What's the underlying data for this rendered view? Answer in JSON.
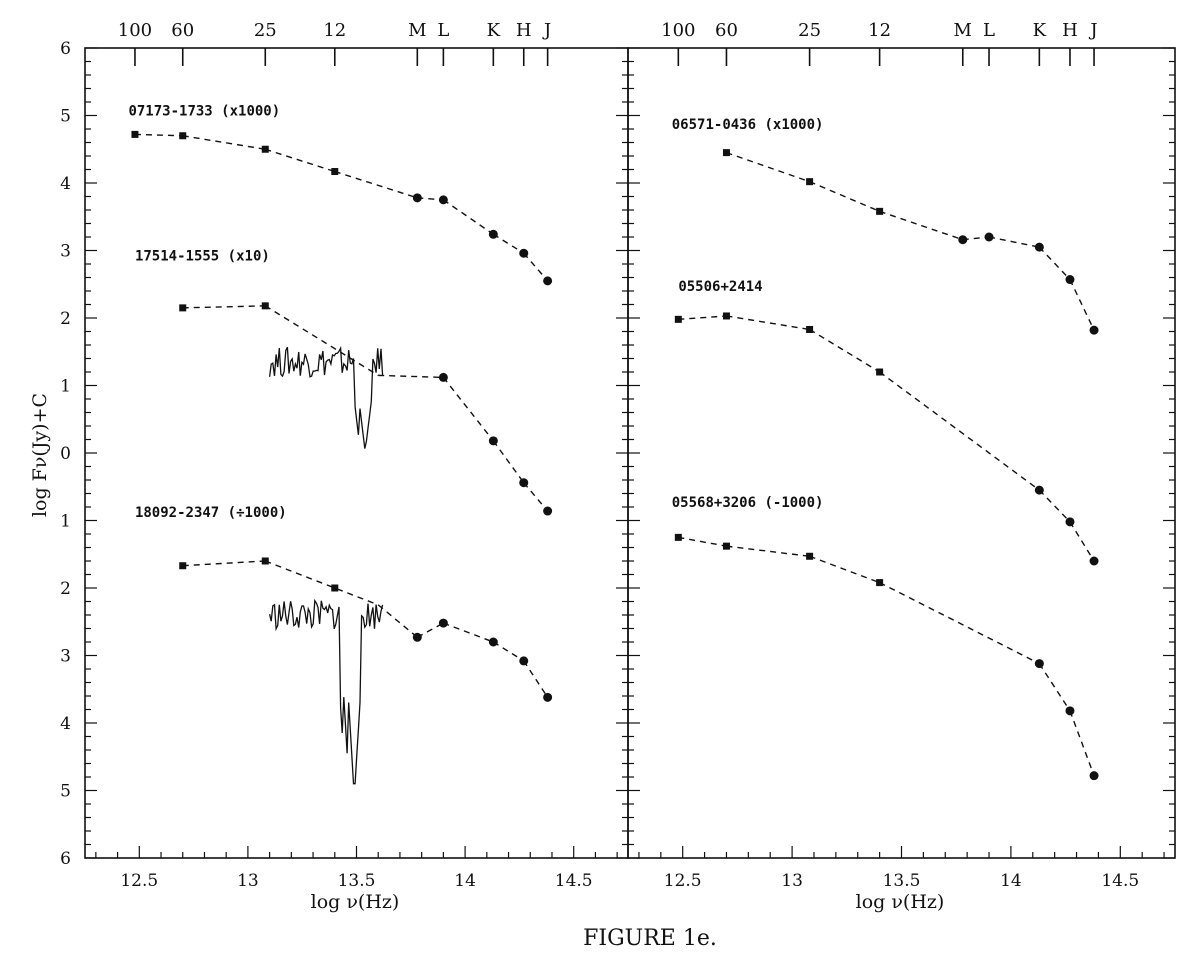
{
  "figure_caption": "FIGURE 1e.",
  "chart_data": [
    {
      "type": "line",
      "panel": "left",
      "ylabel": "log  Fν(Jy)+C",
      "xlabel": "log  ν(Hz)",
      "xlim": [
        12.25,
        14.75
      ],
      "ylim": [
        -6,
        6
      ],
      "x_tick_labels": [
        "12.5",
        "13",
        "13.5",
        "14",
        "14.5"
      ],
      "x_ticks": [
        12.5,
        13,
        13.5,
        14,
        14.5
      ],
      "y_tick_labels": [
        "6",
        "5",
        "4",
        "3",
        "2",
        "1",
        "0",
        "1",
        "2",
        "3",
        "4",
        "5",
        "6"
      ],
      "y_ticks": [
        6,
        5,
        4,
        3,
        2,
        1,
        0,
        -1,
        -2,
        -3,
        -4,
        -5,
        -6
      ],
      "top_band_labels": [
        "100",
        "60",
        "25",
        "12",
        "M",
        "L",
        "K",
        "H",
        "J"
      ],
      "top_band_x": [
        12.48,
        12.7,
        13.08,
        13.4,
        13.78,
        13.9,
        14.13,
        14.27,
        14.38
      ],
      "series": [
        {
          "name": "07173-1733 (x1000)",
          "label_pos": [
            12.45,
            5.0
          ],
          "x": [
            12.48,
            12.7,
            13.08,
            13.4,
            13.78,
            13.9,
            14.13,
            14.27,
            14.38
          ],
          "y": [
            4.72,
            4.7,
            4.5,
            4.17,
            3.78,
            3.75,
            3.24,
            2.96,
            2.55
          ],
          "markers": [
            "square",
            "square",
            "square",
            "square",
            "circle",
            "circle",
            "circle",
            "circle",
            "circle"
          ]
        },
        {
          "name": "17514-1555 (x10)",
          "label_pos": [
            12.48,
            2.85
          ],
          "x": [
            12.7,
            13.08,
            13.6,
            13.9,
            14.13,
            14.27,
            14.38
          ],
          "y": [
            2.15,
            2.18,
            1.15,
            1.12,
            0.18,
            -0.44,
            -0.86
          ],
          "markers": [
            "square",
            "square",
            "none",
            "circle",
            "circle",
            "circle",
            "circle"
          ],
          "spectrum": {
            "x_start": 13.1,
            "x_end": 13.62,
            "y_base": 1.35,
            "trough_x": [
              13.52,
              13.54
            ],
            "trough_y": [
              -0.05,
              0.02
            ]
          }
        },
        {
          "name": "18092-2347 (÷1000)",
          "label_pos": [
            12.48,
            -0.95
          ],
          "x": [
            12.7,
            13.08,
            13.6,
            13.78,
            13.9,
            14.13,
            14.27,
            14.38
          ],
          "y": [
            -1.67,
            -1.6,
            -2.25,
            -2.73,
            -2.52,
            -2.8,
            -3.08,
            -3.62
          ],
          "markers": [
            "square",
            "square",
            "none",
            "circle",
            "circle",
            "circle",
            "circle",
            "circle"
          ],
          "extra_points": [
            {
              "x": 13.4,
              "y": -2.0
            }
          ],
          "spectrum": {
            "x_start": 13.1,
            "x_end": 13.62,
            "y_base": -2.4,
            "trough_x": [
              13.45,
              13.47,
              13.49
            ],
            "trough_y": [
              -4.95,
              -5.2,
              -5.1
            ]
          }
        }
      ]
    },
    {
      "type": "line",
      "panel": "right",
      "xlabel": "log  ν(Hz)",
      "xlim": [
        12.25,
        14.75
      ],
      "ylim": [
        -6,
        6
      ],
      "x_tick_labels": [
        "12.5",
        "13",
        "13.5",
        "14",
        "14.5"
      ],
      "x_ticks": [
        12.5,
        13,
        13.5,
        14,
        14.5
      ],
      "top_band_labels": [
        "100",
        "60",
        "25",
        "12",
        "M",
        "L",
        "K",
        "H",
        "J"
      ],
      "top_band_x": [
        12.48,
        12.7,
        13.08,
        13.4,
        13.78,
        13.9,
        14.13,
        14.27,
        14.38
      ],
      "series": [
        {
          "name": "06571-0436 (x1000)",
          "label_pos": [
            12.45,
            4.8
          ],
          "x": [
            12.7,
            13.08,
            13.4,
            13.78,
            13.9,
            14.13,
            14.27,
            14.38
          ],
          "y": [
            4.45,
            4.02,
            3.58,
            3.16,
            3.2,
            3.05,
            2.57,
            1.82
          ],
          "markers": [
            "square",
            "square",
            "square",
            "circle",
            "circle",
            "circle",
            "circle",
            "circle"
          ]
        },
        {
          "name": "05506+2414",
          "label_pos": [
            12.48,
            2.4
          ],
          "x": [
            12.48,
            12.7,
            13.08,
            13.4,
            14.13,
            14.27,
            14.38
          ],
          "y": [
            1.98,
            2.03,
            1.83,
            1.2,
            -0.55,
            -1.02,
            -1.6
          ],
          "markers": [
            "square",
            "square",
            "square",
            "square",
            "circle",
            "circle",
            "circle"
          ]
        },
        {
          "name": "05568+3206 (-1000)",
          "label_pos": [
            12.45,
            -0.8
          ],
          "x": [
            12.48,
            12.7,
            13.08,
            13.4,
            14.13,
            14.27,
            14.38
          ],
          "y": [
            -1.25,
            -1.38,
            -1.53,
            -1.92,
            -3.12,
            -3.82,
            -4.78
          ],
          "markers": [
            "square",
            "square",
            "square",
            "square",
            "circle",
            "circle",
            "circle"
          ]
        }
      ]
    }
  ]
}
